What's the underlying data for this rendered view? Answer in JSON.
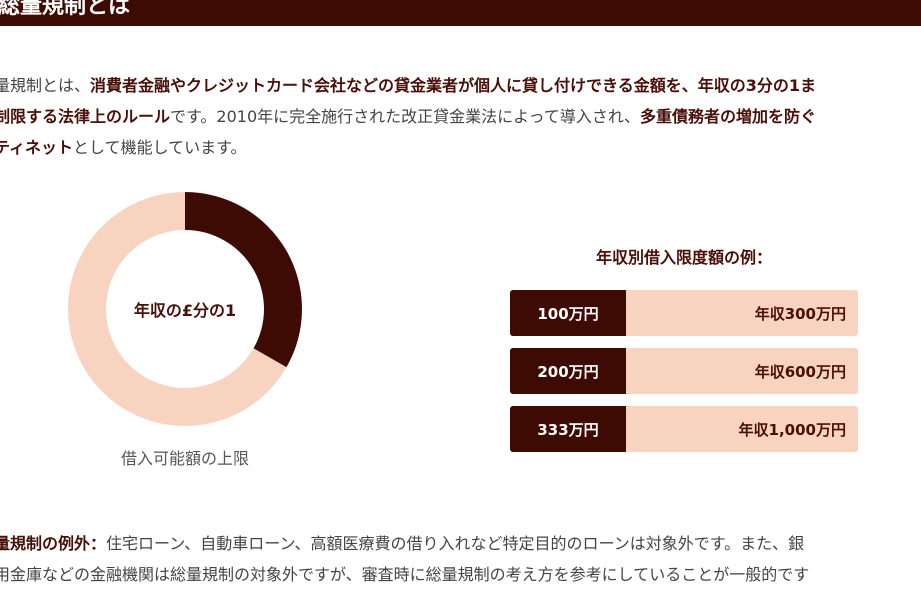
{
  "header": {
    "title": "総量規制とは"
  },
  "intro": {
    "line1_pre": "量規制とは、",
    "line1_bold": "消費者金融やクレジットカード会社などの貸金業者が個人に貸し付けできる金額を、年収の3分の1ま",
    "line2_bold": "制限する法律上のルール",
    "line2_mid": "です。2010年に完全施行された改正貸金業法によって導入され、",
    "line2_bold2": "多重債務者の増加を防ぐ",
    "line3_bold": "ティネット",
    "line3_post": "として機能しています。"
  },
  "donut": {
    "center_label": "年収の£分の1",
    "caption": "借入可能額の上限",
    "colors": {
      "filled": "#3d0b04",
      "remaining": "#f7d3c0"
    }
  },
  "chart_data": {
    "type": "pie",
    "values": [
      33.3,
      66.7
    ],
    "title": "",
    "colors": [
      "#3d0b04",
      "#f7d3c0"
    ]
  },
  "examples": {
    "title": "年収別借入限度額の例：",
    "rows": [
      {
        "amount": "100万円",
        "income": "年収300万円"
      },
      {
        "amount": "200万円",
        "income": "年収600万円"
      },
      {
        "amount": "333万円",
        "income": "年収1,000万円"
      }
    ]
  },
  "exceptions": {
    "line1_bold": "量規制の例外：",
    "line1_text": "住宅ローン、自動車ローン、高額医療費の借り入れなど特定目的のローンは対象外です。また、銀",
    "line2_text": "用金庫などの金融機関は総量規制の対象外ですが、審査時に総量規制の考え方を参考にしていることが一般的です"
  },
  "theme": {
    "dark": "#3d0b04",
    "light": "#f7d3c0"
  }
}
